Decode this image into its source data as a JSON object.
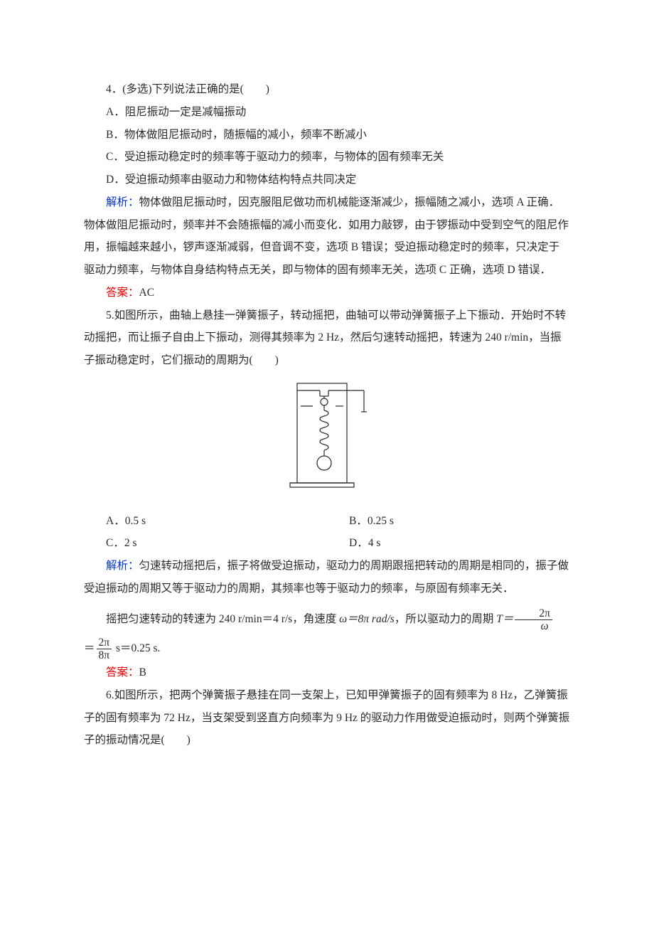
{
  "q4": {
    "stem": "4．(多选)下列说法正确的是(　　)",
    "A": "A．阻尼振动一定是减幅振动",
    "B": "B．物体做阻尼振动时，随振幅的减小，频率不断减小",
    "C": "C．受迫振动稳定时的频率等于驱动力的频率，与物体的固有频率无关",
    "D": "D．受迫振动频率由驱动力和物体结构特点共同决定",
    "analysis_label": "解析：",
    "analysis": "物体做阻尼振动时，因克服阻尼做功而机械能逐渐减少，振幅随之减小，选项 A 正确．物体做阻尼振动时，频率并不会随振幅的减小而变化．如用力敲锣，由于锣振动中受到空气的阻尼作用，振幅越来越小，锣声逐渐减弱，但音调不变，选项 B 错误；受迫振动稳定时的频率，只决定于驱动力频率，与物体自身结构特点无关，即与物体的固有频率无关，选项 C 正确，选项 D 错误．",
    "answer_label": "答案：",
    "answer": "AC"
  },
  "q5": {
    "stem": "5.如图所示，曲轴上悬挂一弹簧振子，转动摇把，曲轴可以带动弹簧振子上下振动．开始时不转动摇把，而让振子自由上下振动，测得其频率为 2 Hz，然后匀速转动摇把，转速为 240 r/min，当振子振动稳定时，它们振动的周期为(　　)",
    "A": "A．0.5 s",
    "B": "B．0.25 s",
    "C": "C．2 s",
    "D": "D．4 s",
    "analysis_label": "解析：",
    "analysis": "匀速转动摇把后，振子将做受迫振动，驱动力的周期跟摇把转动的周期是相同的，振子做受迫振动的周期又等于驱动力的周期，其频率也等于驱动力的频率，与原固有频率无关．",
    "eq_intro": "摇把匀速转动的转速为 240 r/min＝4 r/s，角速度 ",
    "omega_expr": "ω＝8π rad/s",
    "so_text": "，所以驱动力的周期 ",
    "T_eq": "T＝",
    "frac1_num": "2π",
    "frac1_den": "ω",
    "eq_mid": "＝",
    "frac2_num": "2π",
    "frac2_den": "8π",
    "eq_tail": " s＝0.25 s.",
    "answer_label": "答案：",
    "answer": "B",
    "figure": {
      "width": 140,
      "height": 170,
      "stroke": "#2a2a2a"
    }
  },
  "q6": {
    "stem": "6.如图所示，把两个弹簧振子悬挂在同一支架上，已知甲弹簧振子的固有频率为 8 Hz，乙弹簧振子的固有频率为 72 Hz，当支架受到竖直方向频率为 9 Hz 的驱动力作用做受迫振动时，则两个弹簧振子的振动情况是(　　)"
  }
}
